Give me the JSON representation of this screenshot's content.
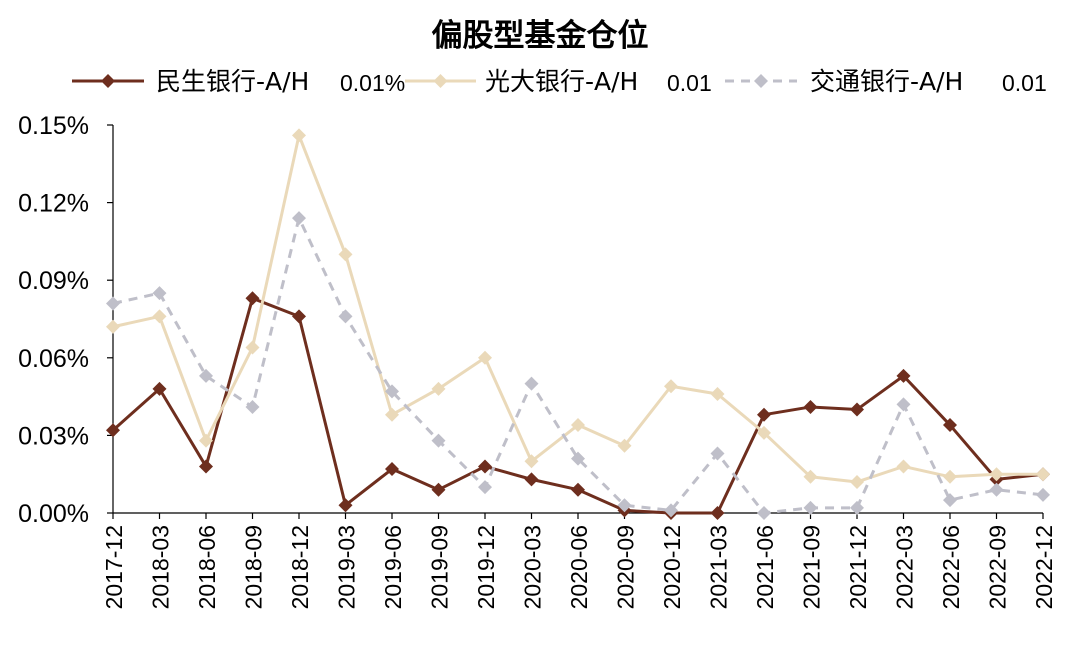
{
  "chart_data": {
    "type": "line",
    "title": "偏股型基金仓位",
    "xlabel": "",
    "ylabel": "",
    "ylim": [
      0,
      0.15
    ],
    "y_ticks": [
      "0.00%",
      "0.03%",
      "0.06%",
      "0.09%",
      "0.12%",
      "0.15%"
    ],
    "y_tick_values": [
      0,
      0.03,
      0.06,
      0.09,
      0.12,
      0.15
    ],
    "grid": false,
    "legend_position": "top",
    "categories": [
      "2017-12",
      "2018-03",
      "2018-06",
      "2018-09",
      "2018-12",
      "2019-03",
      "2019-06",
      "2019-09",
      "2019-12",
      "2020-03",
      "2020-06",
      "2020-09",
      "2020-12",
      "2021-03",
      "2021-06",
      "2021-09",
      "2021-12",
      "2022-03",
      "2022-06",
      "2022-09",
      "2022-12"
    ],
    "series": [
      {
        "name": "民生银行-A/H",
        "legend_suffix": "0.01%",
        "color": "#6E2E1E",
        "dashed": false,
        "values": [
          0.032,
          0.048,
          0.018,
          0.083,
          0.076,
          0.003,
          0.017,
          0.009,
          0.018,
          0.013,
          0.009,
          0.001,
          0.0,
          0.0,
          0.038,
          0.041,
          0.04,
          0.053,
          0.034,
          0.013,
          0.015
        ]
      },
      {
        "name": "光大银行-A/H",
        "legend_suffix": "0.01",
        "color": "#EAD9B9",
        "dashed": false,
        "values": [
          0.072,
          0.076,
          0.028,
          0.064,
          0.146,
          0.1,
          0.038,
          0.048,
          0.06,
          0.02,
          0.034,
          0.026,
          0.049,
          0.046,
          0.031,
          0.014,
          0.012,
          0.018,
          0.014,
          0.015,
          0.015
        ]
      },
      {
        "name": "交通银行-A/H",
        "legend_suffix": "0.01",
        "color": "#BFBFC9",
        "dashed": true,
        "values": [
          0.081,
          0.085,
          0.053,
          0.041,
          0.114,
          0.076,
          0.047,
          0.028,
          0.01,
          0.05,
          0.021,
          0.003,
          0.001,
          0.023,
          0.0,
          0.002,
          0.002,
          0.042,
          0.005,
          0.009,
          0.007
        ]
      }
    ]
  }
}
